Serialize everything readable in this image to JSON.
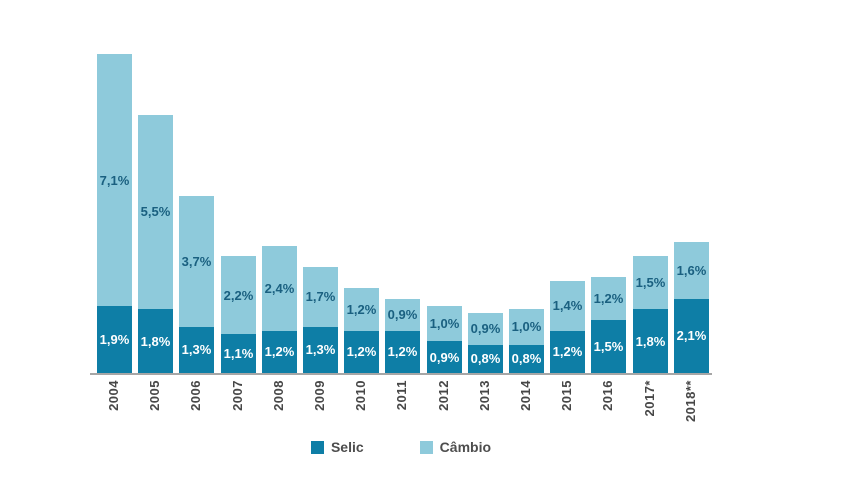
{
  "chart_data": {
    "type": "bar",
    "stacked": true,
    "title": "",
    "xlabel": "",
    "ylabel": "",
    "ylim": [
      0,
      9.2
    ],
    "grid": false,
    "y_axis_visible": false,
    "legend_position": "bottom",
    "categories": [
      "2004",
      "2005",
      "2006",
      "2007",
      "2008",
      "2009",
      "2010",
      "2011",
      "2012",
      "2013",
      "2014",
      "2015",
      "2016",
      "2017*",
      "2018**"
    ],
    "series": [
      {
        "name": "Selic",
        "color": "#0e7ea6",
        "label_color": "#ffffff",
        "values": [
          1.9,
          1.8,
          1.3,
          1.1,
          1.2,
          1.3,
          1.2,
          1.2,
          0.9,
          0.8,
          0.8,
          1.2,
          1.5,
          1.8,
          2.1
        ],
        "labels": [
          "1,9%",
          "1,8%",
          "1,3%",
          "1,1%",
          "1,2%",
          "1,3%",
          "1,2%",
          "1,2%",
          "0,9%",
          "0,8%",
          "0,8%",
          "1,2%",
          "1,5%",
          "1,8%",
          "2,1%"
        ]
      },
      {
        "name": "Câmbio",
        "color": "#8ecadb",
        "label_color": "#1a6080",
        "values": [
          7.1,
          5.5,
          3.7,
          2.2,
          2.4,
          1.7,
          1.2,
          0.9,
          1.0,
          0.9,
          1.0,
          1.4,
          1.2,
          1.5,
          1.6
        ],
        "labels": [
          "7,1%",
          "5,5%",
          "3,7%",
          "2,2%",
          "2,4%",
          "1,7%",
          "1,2%",
          "0,9%",
          "1,0%",
          "0,9%",
          "1,0%",
          "1,4%",
          "1,2%",
          "1,5%",
          "1,6%"
        ]
      }
    ],
    "colors": {
      "axis_line": "#a6a6a6",
      "category_text": "#474747",
      "legend_text": "#4d4d4d",
      "background": "#ffffff"
    }
  }
}
